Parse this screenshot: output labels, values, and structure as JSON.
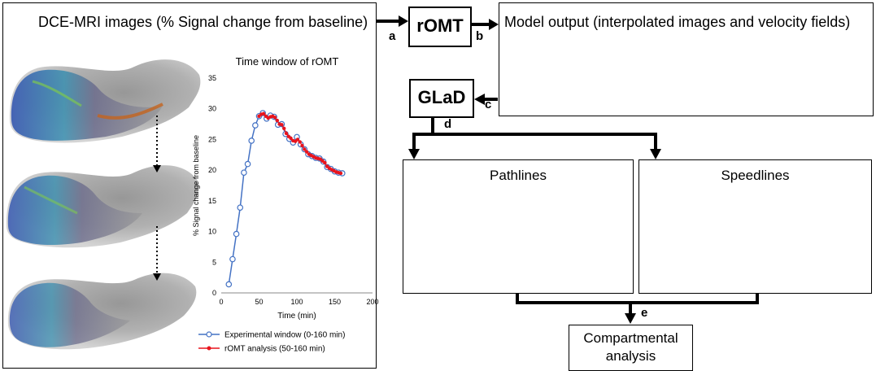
{
  "left_panel": {
    "title": "DCE-MRI images (% Signal change from baseline)"
  },
  "romt_box": {
    "label": "rOMT"
  },
  "glad_box": {
    "label": "GLaD"
  },
  "model_panel": {
    "title": "Model output (interpolated images and velocity fields)"
  },
  "pathlines_panel": {
    "title": "Pathlines"
  },
  "speedlines_panel": {
    "title": "Speedlines"
  },
  "compartmental_box": {
    "line1": "Compartmental",
    "line2": "analysis"
  },
  "arrow_labels": {
    "a": "a",
    "b": "b",
    "c": "c",
    "d": "d",
    "e": "e"
  },
  "colors": {
    "pathlines": "#d6286f",
    "blue_line": "#4472c4",
    "red_marker": "#e8141d"
  },
  "chart_data": {
    "type": "line",
    "title": "Time window of rOMT",
    "xlabel": "Time (min)",
    "ylabel": "% Signal change from baseline",
    "xlim": [
      0,
      200
    ],
    "ylim": [
      0,
      35
    ],
    "xticks": [
      "0",
      "50",
      "100",
      "150",
      "200"
    ],
    "yticks": [
      "0",
      "5",
      "10",
      "15",
      "20",
      "25",
      "30",
      "35"
    ],
    "grid": false,
    "legend_position": "bottom",
    "series": [
      {
        "name": "Experimental window (0-160 min)",
        "color": "#4472c4",
        "x": [
          10,
          15,
          20,
          25,
          30,
          35,
          40,
          45,
          50,
          55,
          60,
          65,
          70,
          75,
          80,
          85,
          90,
          95,
          100,
          105,
          110,
          115,
          120,
          125,
          130,
          135,
          140,
          145,
          150,
          155,
          160
        ],
        "y": [
          1.4,
          5.5,
          9.6,
          13.9,
          19.6,
          21.0,
          24.8,
          27.3,
          28.8,
          29.3,
          28.4,
          28.9,
          28.7,
          27.4,
          27.5,
          25.9,
          25.1,
          24.5,
          25.4,
          24.2,
          23.4,
          22.6,
          22.3,
          22.0,
          21.9,
          21.4,
          20.5,
          20.2,
          19.8,
          19.6,
          19.5
        ]
      },
      {
        "name": "rOMT analysis (50-160 min)",
        "color": "#e8141d",
        "x": [
          50,
          53,
          56,
          59,
          62,
          65,
          68,
          71,
          74,
          77,
          80,
          83,
          86,
          89,
          92,
          95,
          98,
          101,
          104,
          107,
          110,
          113,
          116,
          119,
          122,
          125,
          128,
          131,
          134,
          137,
          140,
          143,
          146,
          149,
          152,
          155,
          158
        ],
        "y": [
          28.8,
          29.1,
          29.2,
          28.8,
          28.5,
          28.7,
          28.8,
          28.6,
          28.1,
          27.5,
          27.4,
          26.8,
          26.0,
          25.5,
          25.2,
          24.8,
          24.7,
          25.0,
          24.6,
          24.0,
          23.4,
          23.0,
          22.6,
          22.4,
          22.2,
          22.0,
          21.9,
          21.8,
          21.5,
          21.2,
          20.6,
          20.3,
          20.1,
          19.9,
          19.7,
          19.6,
          19.5
        ]
      }
    ]
  }
}
